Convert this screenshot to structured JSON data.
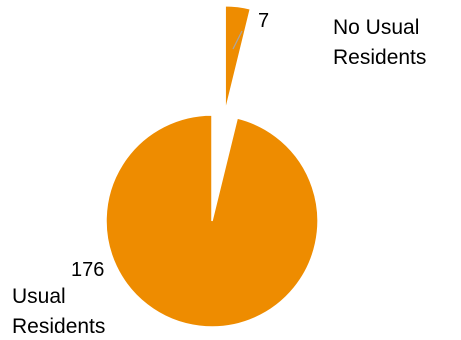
{
  "chart_data": {
    "type": "pie",
    "title": "",
    "categories": [
      "Usual Residents",
      "No Usual Residents"
    ],
    "values": [
      176,
      7
    ],
    "colors": [
      "#EE8C00",
      "#EE8C00"
    ],
    "exploded": [
      false,
      true
    ],
    "data_labels": [
      "176",
      "7"
    ],
    "category_label_lines": [
      [
        "Usual",
        "Residents"
      ],
      [
        "No Usual",
        "Residents"
      ]
    ],
    "legend": false
  }
}
